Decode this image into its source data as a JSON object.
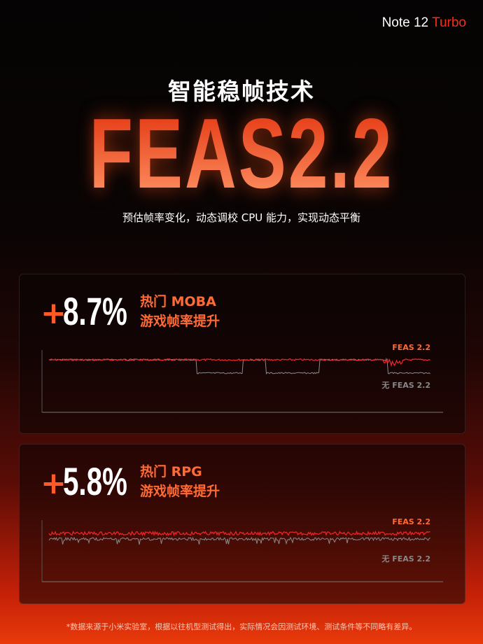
{
  "brand": {
    "model": "Note 12",
    "suffix": "Turbo"
  },
  "title": "智能稳帧技术",
  "headline": "FEAS2.2",
  "subtitle": "预估帧率变化，动态调校 CPU 能力，实现动态平衡",
  "cards": [
    {
      "sign": "+",
      "value": "8.7%",
      "line1": "热门 MOBA",
      "line2": "游戏帧率提升",
      "legend_on": "FEAS 2.2",
      "legend_off": "无 FEAS 2.2"
    },
    {
      "sign": "+",
      "value": "5.8%",
      "line1": "热门 RPG",
      "line2": "游戏帧率提升",
      "legend_on": "FEAS 2.2",
      "legend_off": "无 FEAS 2.2"
    }
  ],
  "colors": {
    "accent": "#ff5a28",
    "feas_line": "#e8252a",
    "no_feas_line": "#8a8a8a",
    "brand_red": "#f0301c"
  },
  "footnote": "*数据来源于小米实验室，根据以往机型测试得出，实际情况会因测试环境、测试条件等不同略有差异。"
}
